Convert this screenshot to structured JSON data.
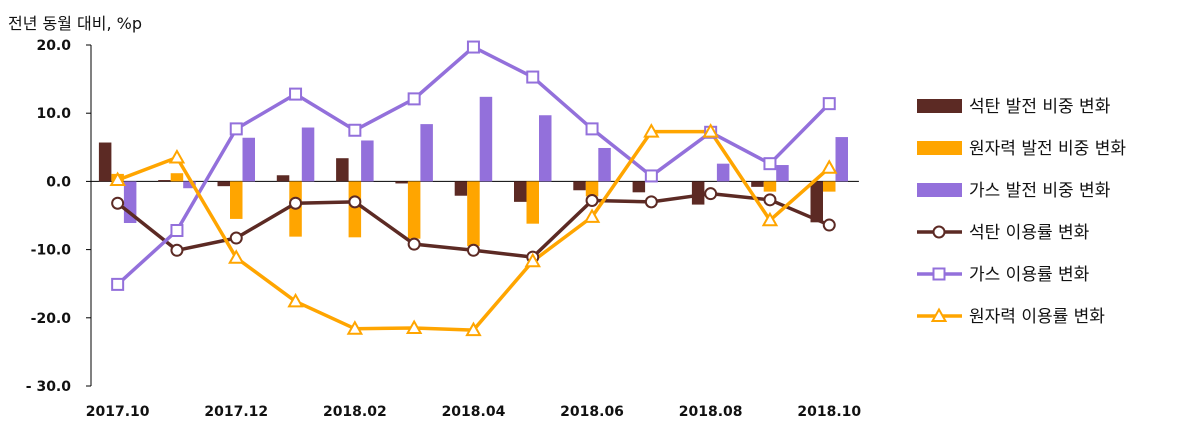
{
  "chart_data": {
    "type": "bar",
    "unit_label": "전년 동월 대비, %p",
    "categories": [
      "2017.10",
      "2017.11",
      "2017.12",
      "2018.01",
      "2018.02",
      "2018.03",
      "2018.04",
      "2018.05",
      "2018.06",
      "2018.07",
      "2018.08",
      "2018.09",
      "2018.10"
    ],
    "x_tick_labels": [
      "2017.10",
      "2017.12",
      "2018.02",
      "2018.04",
      "2018.06",
      "2018.08",
      "2018.10"
    ],
    "y_tick_labels": [
      "20.0",
      "10.0",
      "0.0",
      "-10.0",
      "-20.0",
      "- 30.0"
    ],
    "ylim": [
      -30,
      20
    ],
    "y_ticks": [
      20,
      10,
      0,
      -10,
      -20,
      -30
    ],
    "grid": false,
    "legend_position": "right",
    "bar_series": [
      {
        "name": "석탄 발전 비중 변화",
        "color": "#5c2a24",
        "values": [
          5.7,
          0.2,
          -0.7,
          0.9,
          3.4,
          -0.3,
          -2.1,
          -3.0,
          -1.3,
          -1.6,
          -3.4,
          -0.8,
          -6.0
        ]
      },
      {
        "name": "원자력 발전 비중 변화",
        "color": "#ffa500",
        "values": [
          1.1,
          1.2,
          -5.5,
          -8.1,
          -8.2,
          -8.4,
          -9.5,
          -6.2,
          -2.2,
          0.0,
          0.0,
          -1.5,
          -1.5
        ]
      },
      {
        "name": "가스 발전 비중 변화",
        "color": "#9370db",
        "values": [
          -6.1,
          -1.0,
          6.4,
          7.9,
          6.0,
          8.4,
          12.4,
          9.7,
          4.9,
          0.0,
          2.6,
          2.4,
          6.5
        ]
      }
    ],
    "line_series": [
      {
        "name": "석탄 이용률 변화",
        "color": "#5c2a24",
        "marker": "circle",
        "values": [
          -3.2,
          -10.1,
          -8.3,
          -3.2,
          -3.0,
          -9.2,
          -10.1,
          -11.1,
          -2.8,
          -3.0,
          -1.8,
          -2.7,
          -6.4
        ]
      },
      {
        "name": "가스 이용률 변화",
        "color": "#9370db",
        "marker": "square",
        "values": [
          -15.1,
          -7.2,
          7.7,
          12.8,
          7.5,
          12.1,
          19.7,
          15.3,
          7.7,
          0.8,
          7.2,
          2.6,
          11.4
        ]
      },
      {
        "name": "원자력 이용률 변화",
        "color": "#ffa500",
        "marker": "triangle",
        "values": [
          0.2,
          3.5,
          -11.2,
          -17.6,
          -21.6,
          -21.5,
          -21.8,
          -11.7,
          -5.2,
          7.3,
          7.3,
          -5.7,
          2.0
        ]
      }
    ],
    "legend_order": [
      "석탄 발전 비중 변화",
      "원자력 발전 비중 변화",
      "가스 발전 비중 변화",
      "석탄 이용률 변화",
      "가스 이용률 변화",
      "원자력 이용률 변화"
    ]
  }
}
